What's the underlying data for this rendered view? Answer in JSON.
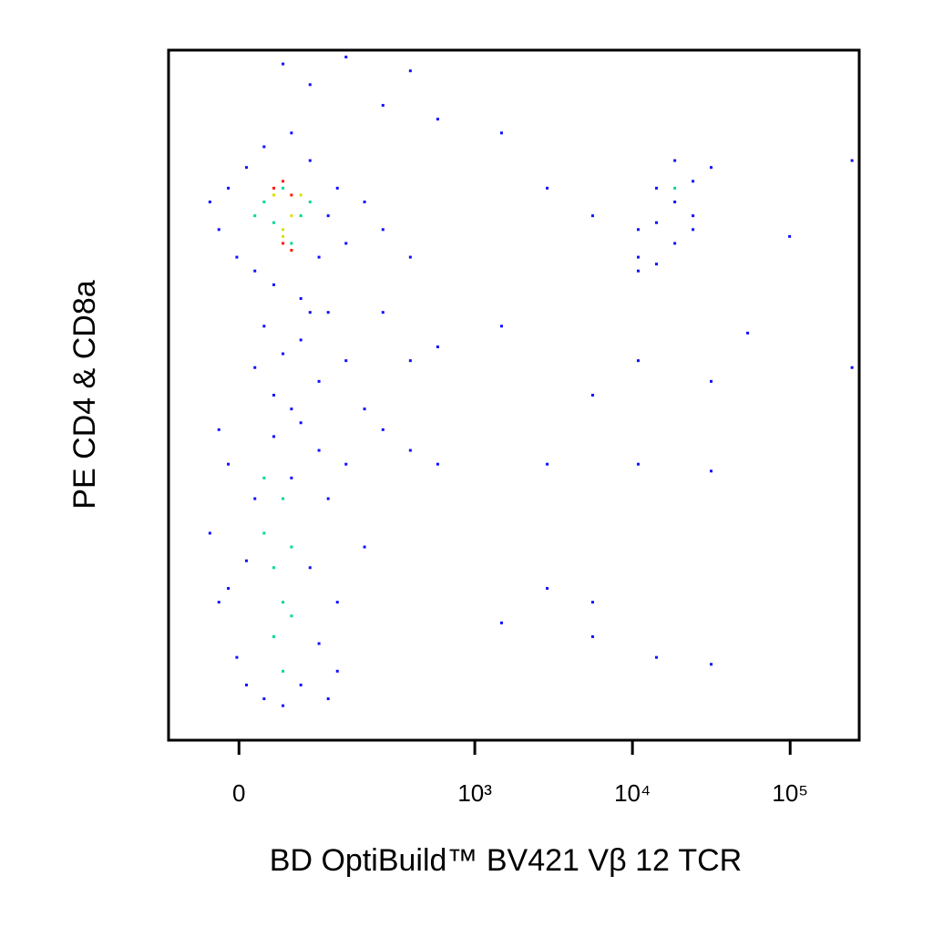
{
  "chart_data": {
    "type": "scatter",
    "x_label": "BD OptiBuild™ BV421 Vβ 12 TCR",
    "y_label": "PE CD4 & CD8a",
    "xscale": "biexponential",
    "xlim": [
      -78,
      274000
    ],
    "xticks": [
      {
        "value": 0,
        "label": "0"
      },
      {
        "value": 1000,
        "label": "10³"
      },
      {
        "value": 10000,
        "label": "10⁴"
      },
      {
        "value": 100000,
        "label": "10⁵"
      }
    ],
    "ylim": [
      0,
      100
    ],
    "series": [
      {
        "color": "#1010ff",
        "x": [
          -28,
          -19,
          -10,
          -2,
          7,
          15,
          24,
          34,
          54,
          66,
          79,
          93,
          109,
          127,
          146,
          195,
          258,
          388,
          24,
          44,
          66,
          93,
          109,
          146,
          34,
          54,
          79,
          15,
          -28,
          -19,
          -10,
          -2,
          7,
          15,
          24,
          34,
          44,
          54,
          66,
          79,
          93,
          109,
          127,
          146,
          195,
          258,
          -19,
          -10,
          7,
          127,
          109,
          93,
          66,
          195,
          44,
          146,
          79,
          258,
          388,
          581,
          258,
          388,
          581,
          388,
          581,
          1479,
          1479,
          2880,
          2880,
          5594,
          5594,
          10880,
          10880,
          31550,
          31550,
          53760,
          99200,
          246800,
          246800,
          31550,
          14200,
          5594,
          1479,
          2880,
          10880,
          14200,
          18560,
          24200,
          18560,
          14200,
          24200,
          10880,
          5594,
          31550,
          18560,
          24200,
          14200,
          10880
        ],
        "y": [
          78,
          74,
          80,
          70,
          83,
          68,
          86,
          66,
          88,
          64,
          84,
          70,
          76,
          80,
          72,
          78,
          74,
          70,
          60,
          56,
          58,
          52,
          62,
          55,
          50,
          48,
          62,
          54,
          30,
          20,
          40,
          12,
          8,
          35,
          6,
          44,
          5,
          38,
          8,
          25,
          14,
          35,
          20,
          40,
          28,
          45,
          45,
          22,
          26,
          10,
          6,
          42,
          46,
          48,
          98,
          99,
          95,
          92,
          97,
          90,
          62,
          55,
          57,
          42,
          40,
          60,
          88,
          80,
          40,
          50,
          20,
          55,
          40,
          52,
          39,
          59,
          73,
          84,
          54,
          11,
          12,
          15,
          17,
          22,
          70,
          75,
          78,
          81,
          72,
          69,
          76,
          74,
          76,
          83,
          84,
          74,
          80,
          68
        ]
      },
      {
        "color": "#00d890",
        "x": [
          24,
          34,
          54,
          44,
          66,
          15,
          79,
          24,
          34,
          44,
          54,
          34,
          44,
          24,
          54,
          44,
          18560
        ],
        "y": [
          78,
          75,
          72,
          80,
          76,
          76,
          78,
          30,
          25,
          20,
          28,
          15,
          35,
          38,
          18,
          10,
          80
        ]
      },
      {
        "color": "#d8e000",
        "x": [
          34,
          54,
          44,
          66,
          44
        ],
        "y": [
          79,
          76,
          73,
          79,
          74
        ]
      },
      {
        "color": "#ff1a00",
        "x": [
          34,
          44,
          54,
          44,
          54
        ],
        "y": [
          80,
          81,
          79,
          72,
          71
        ]
      }
    ]
  }
}
